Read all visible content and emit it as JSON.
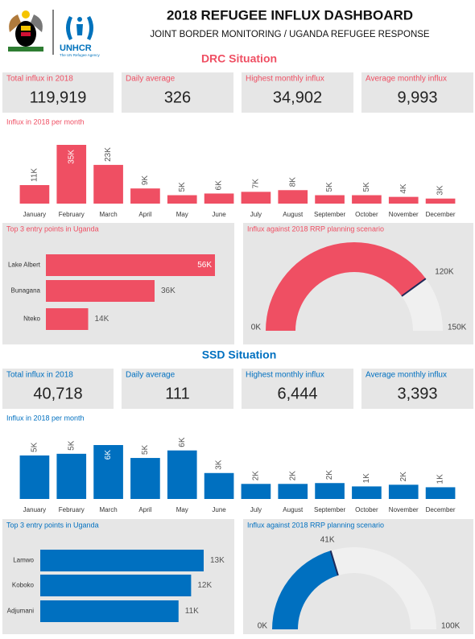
{
  "header": {
    "title": "2018 REFUGEE INFLUX DASHBOARD",
    "subtitle": "JOINT BORDER MONITORING / UGANDA REFUGEE RESPONSE",
    "logo_text": "UNHCR",
    "logo_subtext": "The UN Refugee Agency"
  },
  "sections": [
    {
      "title": "DRC Situation",
      "color": "#ef4f63",
      "kpis": [
        {
          "label": "Total influx in 2018",
          "value": "119,919"
        },
        {
          "label": "Daily average",
          "value": "326"
        },
        {
          "label": "Highest monthly influx",
          "value": "34,902"
        },
        {
          "label": "Average monthly influx",
          "value": "9,993"
        }
      ]
    },
    {
      "title": "SSD Situation",
      "color": "#0070c0",
      "kpis": [
        {
          "label": "Total influx in 2018",
          "value": "40,718"
        },
        {
          "label": "Daily average",
          "value": "111"
        },
        {
          "label": "Highest monthly influx",
          "value": "6,444"
        },
        {
          "label": "Average monthly influx",
          "value": "3,393"
        }
      ]
    }
  ],
  "chart_data": [
    {
      "type": "bar",
      "title": "Influx in 2018 per month",
      "color": "#ef4f63",
      "categories": [
        "January",
        "February",
        "March",
        "April",
        "May",
        "June",
        "July",
        "August",
        "September",
        "October",
        "November",
        "December"
      ],
      "values": [
        11000,
        34902,
        23000,
        9000,
        5000,
        6000,
        7000,
        8000,
        5000,
        5000,
        4000,
        3000
      ],
      "value_labels": [
        "11K",
        "35K",
        "23K",
        "9K",
        "5K",
        "6K",
        "7K",
        "8K",
        "5K",
        "5K",
        "4K",
        "3K"
      ]
    },
    {
      "type": "hbar",
      "title": "Top 3 entry points in Uganda",
      "color": "#ef4f63",
      "categories": [
        "Lake Albert",
        "Bunagana",
        "Nteko"
      ],
      "values": [
        56000,
        36000,
        14000
      ],
      "value_labels": [
        "56K",
        "36K",
        "14K"
      ]
    },
    {
      "type": "gauge",
      "title": "Influx against 2018 RRP planning scenario",
      "color": "#ef4f63",
      "range": [
        {
          "value": 0,
          "label": "0K"
        },
        {
          "value": 150000,
          "label": "150K"
        }
      ],
      "value": 119919,
      "value_label": "120K"
    },
    {
      "type": "bar",
      "title": "Influx in 2018 per month",
      "color": "#0070c0",
      "categories": [
        "January",
        "February",
        "March",
        "April",
        "May",
        "June",
        "July",
        "August",
        "September",
        "October",
        "November",
        "December"
      ],
      "values": [
        5200,
        5400,
        6444,
        4900,
        5800,
        3100,
        1800,
        1800,
        1900,
        1500,
        1700,
        1400
      ],
      "value_labels": [
        "5K",
        "5K",
        "6K",
        "5K",
        "6K",
        "3K",
        "2K",
        "2K",
        "2K",
        "1K",
        "2K",
        "1K"
      ]
    },
    {
      "type": "hbar",
      "title": "Top 3 entry points in Uganda",
      "color": "#0070c0",
      "categories": [
        "Lamwo",
        "Koboko",
        "Adjumani"
      ],
      "values": [
        13000,
        12000,
        11000
      ],
      "value_labels": [
        "13K",
        "12K",
        "11K"
      ]
    },
    {
      "type": "gauge",
      "title": "Influx against 2018 RRP planning scenario",
      "color": "#0070c0",
      "range": [
        {
          "value": 0,
          "label": "0K"
        },
        {
          "value": 100000,
          "label": "100K"
        }
      ],
      "value": 40718,
      "value_label": "41K"
    }
  ]
}
